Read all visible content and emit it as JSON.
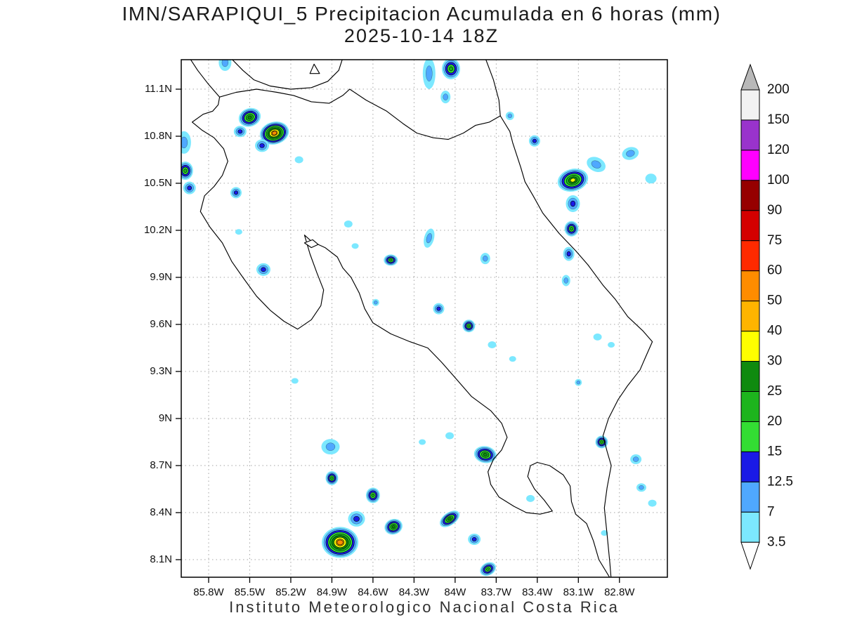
{
  "header": {
    "title_line1": "IMN/SARAPIQUI_5 Precipitacion Acumulada en 6 horas (mm)",
    "title_line2": "2025-10-14 18Z"
  },
  "footer": {
    "caption": "Instituto Meteorologico Nacional Costa Rica"
  },
  "axes": {
    "lat_ticks": [
      {
        "label": "11.1N",
        "value": 11.1
      },
      {
        "label": "10.8N",
        "value": 10.8
      },
      {
        "label": "10.5N",
        "value": 10.5
      },
      {
        "label": "10.2N",
        "value": 10.2
      },
      {
        "label": "9.9N",
        "value": 9.9
      },
      {
        "label": "9.6N",
        "value": 9.6
      },
      {
        "label": "9.3N",
        "value": 9.3
      },
      {
        "label": "9N",
        "value": 9.0
      },
      {
        "label": "8.7N",
        "value": 8.7
      },
      {
        "label": "8.4N",
        "value": 8.4
      },
      {
        "label": "8.1N",
        "value": 8.1
      }
    ],
    "lon_ticks": [
      {
        "label": "85.8W",
        "value": 85.8
      },
      {
        "label": "85.5W",
        "value": 85.5
      },
      {
        "label": "85.2W",
        "value": 85.2
      },
      {
        "label": "84.9W",
        "value": 84.9
      },
      {
        "label": "84.6W",
        "value": 84.6
      },
      {
        "label": "84.3W",
        "value": 84.3
      },
      {
        "label": "84W",
        "value": 84.0
      },
      {
        "label": "83.7W",
        "value": 83.7
      },
      {
        "label": "83.4W",
        "value": 83.4
      },
      {
        "label": "83.1W",
        "value": 83.1
      },
      {
        "label": "82.8W",
        "value": 82.8
      }
    ],
    "grid": true
  },
  "colorbar": {
    "labels_top_to_bottom": [
      "200",
      "150",
      "120",
      "100",
      "90",
      "75",
      "60",
      "50",
      "40",
      "30",
      "25",
      "20",
      "15",
      "12.5",
      "7",
      "3.5"
    ],
    "band_colors_top_to_bottom": [
      "#F2F2F2",
      "#9933CC",
      "#FF00FF",
      "#960000",
      "#D40000",
      "#FF2A00",
      "#FF8C00",
      "#FFB400",
      "#FFFF00",
      "#0F8A0F",
      "#1DB41D",
      "#33DD33",
      "#1A1AE6",
      "#4FA8FF",
      "#7CE8FF"
    ],
    "top_cap_color": "#B8B8B8",
    "bottom_cap_color": "#FFFFFF"
  },
  "chart_data": {
    "type": "heatmap",
    "title": "IMN/SARAPIQUI_5 Precipitacion Acumulada en 6 horas (mm)",
    "valid_time": "2025-10-14 18Z",
    "units": "mm",
    "lon_range_w": [
      86.0,
      82.45
    ],
    "lat_range_n": [
      7.988,
      11.288
    ],
    "scale_levels_mm": [
      3.5,
      7,
      12.5,
      15,
      20,
      25,
      30,
      40,
      50,
      60,
      75,
      90,
      100,
      120,
      150,
      200
    ],
    "cell_format": [
      "lon_w",
      "lat_n",
      "peak_mm",
      "rx_px",
      "ry_px",
      "rot_deg"
    ],
    "precip_cells": [
      [
        85.68,
        11.27,
        7,
        9,
        12,
        0
      ],
      [
        84.19,
        11.2,
        7,
        9,
        22,
        0
      ],
      [
        84.03,
        11.23,
        20,
        13,
        15,
        0
      ],
      [
        84.07,
        11.05,
        7,
        7,
        9,
        0
      ],
      [
        85.5,
        10.92,
        25,
        16,
        13,
        -20
      ],
      [
        85.57,
        10.83,
        12.5,
        9,
        8,
        0
      ],
      [
        85.32,
        10.82,
        50,
        21,
        16,
        -15
      ],
      [
        85.41,
        10.74,
        12.5,
        10,
        9,
        0
      ],
      [
        85.98,
        10.76,
        7,
        10,
        16,
        0
      ],
      [
        85.97,
        10.58,
        20,
        11,
        13,
        0
      ],
      [
        85.94,
        10.47,
        12.5,
        9,
        9,
        0
      ],
      [
        85.14,
        10.65,
        3.5,
        6,
        5,
        0
      ],
      [
        85.6,
        10.44,
        12.5,
        8,
        8,
        0
      ],
      [
        85.58,
        10.19,
        3.5,
        5,
        4,
        0
      ],
      [
        85.4,
        9.95,
        12.5,
        10,
        9,
        0
      ],
      [
        84.78,
        10.24,
        3.5,
        6,
        5,
        0
      ],
      [
        84.73,
        10.1,
        3.5,
        5,
        4,
        0
      ],
      [
        84.47,
        10.01,
        20,
        10,
        8,
        0
      ],
      [
        84.19,
        10.15,
        7,
        7,
        14,
        15
      ],
      [
        84.12,
        9.7,
        12.5,
        8,
        8,
        0
      ],
      [
        83.78,
        10.02,
        7,
        7,
        8,
        0
      ],
      [
        83.9,
        9.59,
        20,
        9,
        9,
        0
      ],
      [
        83.73,
        9.47,
        3.5,
        6,
        5,
        0
      ],
      [
        83.58,
        9.38,
        3.5,
        5,
        4,
        0
      ],
      [
        83.42,
        10.77,
        12.5,
        8,
        8,
        0
      ],
      [
        83.6,
        10.93,
        7,
        6,
        6,
        0
      ],
      [
        83.14,
        10.52,
        30,
        22,
        16,
        -15
      ],
      [
        82.97,
        10.62,
        7,
        14,
        10,
        25
      ],
      [
        82.72,
        10.69,
        7,
        12,
        9,
        -15
      ],
      [
        82.57,
        10.53,
        3.5,
        8,
        7,
        0
      ],
      [
        83.14,
        10.37,
        12.5,
        10,
        12,
        0
      ],
      [
        83.15,
        10.21,
        20,
        10,
        11,
        0
      ],
      [
        83.17,
        10.05,
        12.5,
        8,
        10,
        0
      ],
      [
        83.19,
        9.88,
        7,
        6,
        8,
        0
      ],
      [
        82.96,
        9.52,
        3.5,
        6,
        5,
        0
      ],
      [
        82.86,
        9.47,
        3.5,
        5,
        4,
        0
      ],
      [
        83.1,
        9.23,
        7,
        5,
        5,
        0
      ],
      [
        82.93,
        8.85,
        20,
        9,
        9,
        0
      ],
      [
        82.68,
        8.74,
        7,
        8,
        7,
        0
      ],
      [
        82.64,
        8.56,
        7,
        7,
        6,
        0
      ],
      [
        82.56,
        8.46,
        3.5,
        6,
        5,
        0
      ],
      [
        83.78,
        8.77,
        25,
        16,
        12,
        10
      ],
      [
        84.04,
        8.89,
        3.5,
        6,
        5,
        0
      ],
      [
        84.91,
        8.82,
        7,
        13,
        11,
        0
      ],
      [
        84.9,
        8.62,
        20,
        9,
        10,
        0
      ],
      [
        84.6,
        8.51,
        20,
        10,
        11,
        0
      ],
      [
        84.24,
        8.85,
        3.5,
        5,
        4,
        0
      ],
      [
        84.84,
        8.21,
        50,
        26,
        22,
        0
      ],
      [
        84.72,
        8.36,
        12.5,
        12,
        11,
        0
      ],
      [
        84.45,
        8.31,
        25,
        13,
        11,
        -20
      ],
      [
        84.04,
        8.36,
        25,
        16,
        9,
        -35
      ],
      [
        83.86,
        8.23,
        12.5,
        9,
        8,
        0
      ],
      [
        83.76,
        8.04,
        20,
        12,
        9,
        -30
      ],
      [
        83.45,
        8.49,
        3.5,
        6,
        5,
        0
      ],
      [
        84.58,
        9.74,
        7,
        5,
        5,
        0
      ],
      [
        85.17,
        9.24,
        3.5,
        5,
        4,
        0
      ],
      [
        82.91,
        8.27,
        3.5,
        5,
        4,
        0
      ]
    ],
    "coastlines": {
      "mainland": [
        [
          85.72,
          11.05
        ],
        [
          85.6,
          11.08
        ],
        [
          85.45,
          11.1
        ],
        [
          85.3,
          11.08
        ],
        [
          85.18,
          11.06
        ],
        [
          85.05,
          11.02
        ],
        [
          84.92,
          11.01
        ],
        [
          84.82,
          11.06
        ],
        [
          84.77,
          11.1
        ],
        [
          84.65,
          11.03
        ],
        [
          84.5,
          10.96
        ],
        [
          84.38,
          10.88
        ],
        [
          84.28,
          10.82
        ],
        [
          84.16,
          10.79
        ],
        [
          84.05,
          10.78
        ],
        [
          83.94,
          10.82
        ],
        [
          83.85,
          10.87
        ],
        [
          83.75,
          10.89
        ],
        [
          83.67,
          10.93
        ],
        [
          83.6,
          10.83
        ],
        [
          83.58,
          10.76
        ],
        [
          83.52,
          10.6
        ],
        [
          83.49,
          10.51
        ],
        [
          83.43,
          10.42
        ],
        [
          83.36,
          10.31
        ],
        [
          83.24,
          10.18
        ],
        [
          83.12,
          10.07
        ],
        [
          83.03,
          9.98
        ],
        [
          82.92,
          9.85
        ],
        [
          82.83,
          9.76
        ],
        [
          82.74,
          9.65
        ],
        [
          82.63,
          9.56
        ],
        [
          82.56,
          9.49
        ],
        [
          82.61,
          9.39
        ],
        [
          82.65,
          9.31
        ],
        [
          82.74,
          9.21
        ],
        [
          82.81,
          9.12
        ],
        [
          82.88,
          9.0
        ],
        [
          82.92,
          8.89
        ],
        [
          82.89,
          8.79
        ],
        [
          82.86,
          8.7
        ],
        [
          82.89,
          8.56
        ],
        [
          82.91,
          8.43
        ],
        [
          82.89,
          8.26
        ],
        [
          82.87,
          8.08
        ],
        [
          82.86,
          7.97
        ],
        [
          82.95,
          8.1
        ],
        [
          82.99,
          8.22
        ],
        [
          83.04,
          8.33
        ],
        [
          83.12,
          8.39
        ],
        [
          83.15,
          8.47
        ],
        [
          83.16,
          8.57
        ],
        [
          83.21,
          8.64
        ],
        [
          83.31,
          8.7
        ],
        [
          83.4,
          8.72
        ],
        [
          83.45,
          8.7
        ],
        [
          83.47,
          8.63
        ],
        [
          83.42,
          8.55
        ],
        [
          83.35,
          8.48
        ],
        [
          83.29,
          8.41
        ],
        [
          83.38,
          8.39
        ],
        [
          83.48,
          8.4
        ],
        [
          83.57,
          8.44
        ],
        [
          83.68,
          8.5
        ],
        [
          83.74,
          8.58
        ],
        [
          83.76,
          8.66
        ],
        [
          83.72,
          8.74
        ],
        [
          83.66,
          8.8
        ],
        [
          83.62,
          8.88
        ],
        [
          83.66,
          8.97
        ],
        [
          83.74,
          9.05
        ],
        [
          83.88,
          9.14
        ],
        [
          84.0,
          9.26
        ],
        [
          84.1,
          9.36
        ],
        [
          84.2,
          9.45
        ],
        [
          84.33,
          9.49
        ],
        [
          84.47,
          9.54
        ],
        [
          84.6,
          9.61
        ],
        [
          84.66,
          9.7
        ],
        [
          84.7,
          9.8
        ],
        [
          84.76,
          9.9
        ],
        [
          84.82,
          9.96
        ],
        [
          84.86,
          10.03
        ],
        [
          84.95,
          10.09
        ],
        [
          85.05,
          10.13
        ],
        [
          85.1,
          10.17
        ],
        [
          85.06,
          10.05
        ],
        [
          85.01,
          9.93
        ],
        [
          84.96,
          9.82
        ],
        [
          84.98,
          9.72
        ],
        [
          85.05,
          9.63
        ],
        [
          85.15,
          9.57
        ],
        [
          85.25,
          9.62
        ],
        [
          85.35,
          9.69
        ],
        [
          85.45,
          9.78
        ],
        [
          85.55,
          9.9
        ],
        [
          85.63,
          10.0
        ],
        [
          85.7,
          10.12
        ],
        [
          85.79,
          10.22
        ],
        [
          85.86,
          10.32
        ],
        [
          85.83,
          10.42
        ],
        [
          85.76,
          10.48
        ],
        [
          85.7,
          10.55
        ],
        [
          85.66,
          10.64
        ],
        [
          85.69,
          10.72
        ],
        [
          85.76,
          10.79
        ],
        [
          85.85,
          10.84
        ],
        [
          85.92,
          10.89
        ],
        [
          85.84,
          10.94
        ],
        [
          85.77,
          10.96
        ],
        [
          85.73,
          11.0
        ]
      ],
      "lake_nicaragua_shore": [
        [
          85.64,
          11.3
        ],
        [
          85.55,
          11.22
        ],
        [
          85.47,
          11.16
        ],
        [
          85.35,
          11.12
        ],
        [
          85.2,
          11.1
        ],
        [
          85.05,
          11.11
        ],
        [
          84.93,
          11.15
        ],
        [
          84.85,
          11.22
        ],
        [
          84.82,
          11.3
        ]
      ],
      "nicaragua_pacific": [
        [
          85.94,
          11.3
        ],
        [
          85.88,
          11.22
        ],
        [
          85.8,
          11.13
        ],
        [
          85.74,
          11.07
        ],
        [
          85.72,
          11.05
        ]
      ],
      "nicaragua_caribbean": [
        [
          83.78,
          11.3
        ],
        [
          83.72,
          11.16
        ],
        [
          83.68,
          11.03
        ],
        [
          83.67,
          10.93
        ]
      ],
      "ometepe_island": [
        [
          85.06,
          11.2
        ],
        [
          84.99,
          11.2
        ],
        [
          85.03,
          11.26
        ]
      ],
      "chira_island": [
        [
          85.1,
          10.12
        ],
        [
          85.04,
          10.14
        ],
        [
          85.0,
          10.11
        ],
        [
          85.05,
          10.09
        ]
      ]
    }
  }
}
